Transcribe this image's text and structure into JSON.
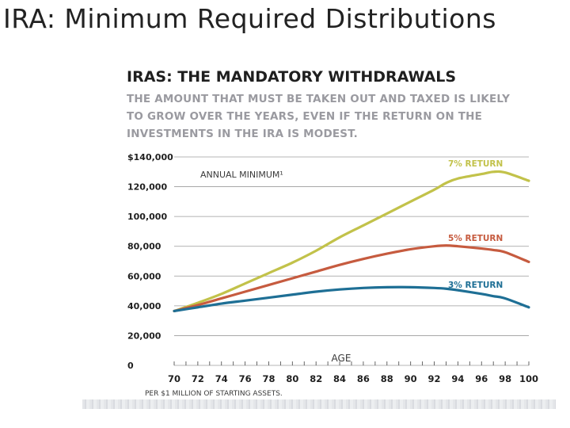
{
  "slide": {
    "title": "IRA:  Minimum Required Distributions"
  },
  "graphic": {
    "headline": "IRAS: THE MANDATORY WITHDRAWALS",
    "subhead": "THE AMOUNT THAT MUST BE TAKEN OUT AND TAXED IS LIKELY TO GROW OVER THE YEARS, EVEN IF THE RETURN ON THE INVESTMENTS IN THE IRA IS MODEST."
  },
  "colors": {
    "grid": "#9b9b9b",
    "axis_text": "#1f1f1f",
    "label_text": "#3a3a3a"
  },
  "chart_data": {
    "type": "line",
    "title": "IRAS: THE MANDATORY WITHDRAWALS",
    "annotation": "ANNUAL MINIMUM¹",
    "xlabel": "AGE",
    "ylabel": "",
    "footnote": "PER $1 MILLION OF STARTING ASSETS.",
    "xlim": [
      70,
      100
    ],
    "ylim": [
      0,
      140000
    ],
    "grid": true,
    "x_ticks": [
      70,
      72,
      74,
      76,
      78,
      80,
      82,
      84,
      86,
      88,
      90,
      92,
      94,
      96,
      98,
      100
    ],
    "x_tick_labels": [
      "70",
      "72",
      "74",
      "76",
      "78",
      "80",
      "82",
      "84",
      "86",
      "88",
      "90",
      "92",
      "94",
      "96",
      "98",
      "100"
    ],
    "y_ticks": [
      0,
      20000,
      40000,
      60000,
      80000,
      100000,
      120000,
      140000
    ],
    "y_tick_labels": [
      "0",
      "20,000",
      "40,000",
      "60,000",
      "80,000",
      "100,000",
      "120,000",
      "$140,000"
    ],
    "x": [
      70,
      72,
      74,
      76,
      78,
      80,
      82,
      84,
      86,
      88,
      90,
      92,
      93,
      94,
      96,
      97,
      98,
      100
    ],
    "series": [
      {
        "name": "7% RETURN",
        "color": "#c2c24a",
        "values": [
          36500,
          42000,
          48000,
          55000,
          62000,
          69000,
          77000,
          86000,
          94000,
          102000,
          110000,
          118000,
          122500,
          125500,
          128500,
          130000,
          129500,
          124000
        ]
      },
      {
        "name": "5% RETURN",
        "color": "#c65b3f",
        "values": [
          36500,
          40500,
          45000,
          49500,
          54000,
          58500,
          63000,
          67500,
          71500,
          75000,
          78000,
          80000,
          80500,
          80000,
          78500,
          77500,
          76000,
          69500
        ]
      },
      {
        "name": "3% RETURN",
        "color": "#1e6f95",
        "values": [
          36500,
          39000,
          41500,
          43500,
          45500,
          47500,
          49500,
          51000,
          52000,
          52500,
          52500,
          52000,
          51500,
          50500,
          48000,
          46500,
          45000,
          39000
        ]
      }
    ]
  }
}
